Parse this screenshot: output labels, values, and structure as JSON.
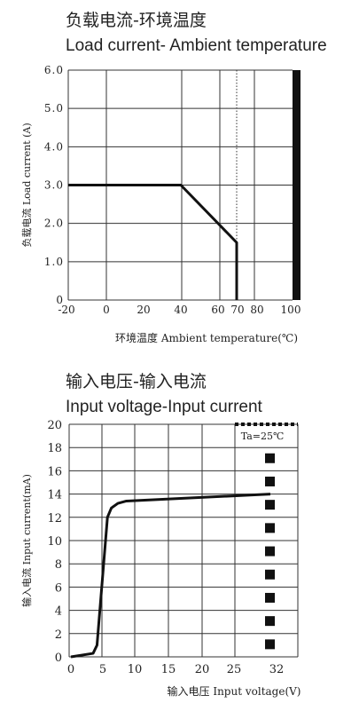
{
  "chart_data": [
    {
      "type": "line",
      "title": "负载电流-环境温度",
      "subtitle": "Load current- Ambient temperature",
      "xlabel": "环境温度 Ambient temperature(℃)",
      "ylabel": "负载电流 Load current (A)",
      "x_ticks": [
        "-20",
        "0",
        "20",
        "40",
        "60",
        "70",
        "80",
        "100"
      ],
      "y_ticks": [
        "0",
        "1.0",
        "2.0",
        "3.0",
        "4.0",
        "5.0",
        "6.0"
      ],
      "xlim": [
        -20,
        100
      ],
      "ylim": [
        0,
        6
      ],
      "grid": true,
      "series": [
        {
          "x": [
            -20,
            40,
            70,
            70
          ],
          "y": [
            3.0,
            3.0,
            1.5,
            0
          ]
        }
      ],
      "markers": {
        "dotted_vertical_at": 70,
        "solid_bar_at": 100
      }
    },
    {
      "type": "line",
      "title": "输入电压-输入电流",
      "subtitle": "Input voltage-Input current",
      "xlabel": "输入电压 Input voltage(V)",
      "ylabel": "输入电流 Input current(mA)",
      "annotation": "Ta=25℃",
      "x_ticks": [
        "0",
        "5",
        "10",
        "15",
        "20",
        "25",
        "32"
      ],
      "y_ticks": [
        "0",
        "2",
        "4",
        "6",
        "8",
        "10",
        "12",
        "14",
        "16",
        "18",
        "20"
      ],
      "xlim": [
        0,
        34
      ],
      "ylim": [
        0,
        20
      ],
      "grid": true,
      "series": [
        {
          "x": [
            0,
            3.4,
            4.0,
            5.6,
            6.2,
            7.2,
            8.5,
            32
          ],
          "y": [
            0,
            0.3,
            1.0,
            12.0,
            12.8,
            13.2,
            13.4,
            14.0
          ]
        }
      ],
      "markers": {
        "dashed_vertical_at": 32
      }
    }
  ]
}
